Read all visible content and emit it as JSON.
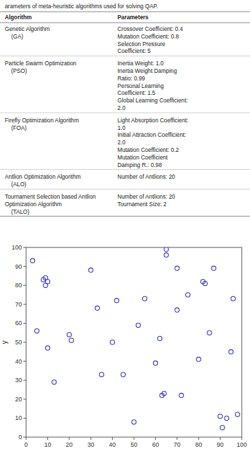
{
  "chart_data": [
    {
      "type": "table",
      "title": "arameters of meta-heuristic algorithms used for solving QAP.",
      "columns": [
        "Algorithm",
        "Parameters"
      ],
      "rows": [
        [
          "Genetic Algorithm\n    (GA)",
          "Crossover Coefficient: 0.4\nMutation Coefficient: 0.8\nSelection Pressure\nCoefficient: 5"
        ],
        [
          "Particle Swarm Optimization\n    (PSO)",
          "Inertia Weight: 1.0\nInertia Weight Damping\nRatio: 0.99\nPersonal Learning\nCoefficient: 1.5\nGlobal Learning Coefficient:\n2.0"
        ],
        [
          "Firefly Optimization Algorithm\n    (FOA)",
          "Light Absorption Coefficient:\n1.0\nInitial Attraction Coefficient:\n2.0\nMutation Coefficient: 0.2\nMutation Coefficient\nDamping R.: 0.98"
        ],
        [
          "Antlion Optimization Algorithm\n    (ALO)",
          "Number of Antlions: 20"
        ],
        [
          "Tournament Selection based Antlion\nOptimization Algorithm\n    (TALO)",
          "Number of Antlions: 20\nTournament Size: 2"
        ]
      ]
    },
    {
      "type": "scatter",
      "ylabel": "y",
      "x": [
        3,
        5,
        8,
        9,
        9,
        10,
        10,
        13,
        20,
        21,
        30,
        33,
        35,
        40,
        42,
        45,
        50,
        52,
        55,
        60,
        62,
        63,
        64,
        65,
        65,
        70,
        70,
        72,
        75,
        80,
        82,
        83,
        85,
        87,
        90,
        91,
        93,
        95,
        96,
        98
      ],
      "values": [
        93,
        56,
        83,
        84,
        80,
        82,
        47,
        29,
        54,
        51,
        88,
        68,
        33,
        50,
        72,
        33,
        8,
        59,
        73,
        39,
        52,
        22,
        23,
        99,
        96,
        89,
        67,
        22,
        75,
        41,
        82,
        81,
        55,
        89,
        11,
        5,
        10,
        45,
        73,
        12
      ],
      "color": "#3333cc",
      "marker": "circle",
      "xlim": [
        0,
        100
      ],
      "ylim": [
        0,
        100
      ],
      "xticks": [
        0,
        10,
        20,
        30,
        40,
        50,
        60,
        70,
        80,
        90,
        100
      ],
      "yticks": [
        0,
        10,
        20,
        30,
        40,
        50,
        60,
        70,
        80,
        90,
        100
      ],
      "grid": false
    }
  ]
}
